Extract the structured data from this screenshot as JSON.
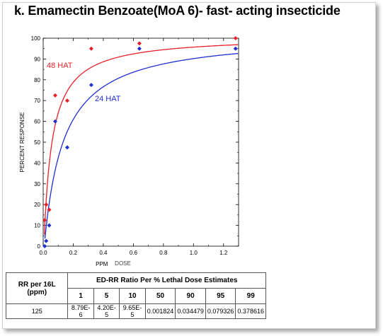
{
  "title": "k. Emamectin Benzoate(MoA 6)- fast- acting insecticide",
  "chart_data": {
    "type": "scatter",
    "xlabel": "PPM",
    "xlabel_overlap": "DOSE",
    "ylabel": "PERCENT  RESPONSE",
    "xlim": [
      0,
      1.3
    ],
    "ylim": [
      0,
      100
    ],
    "x_ticks": [
      "0.0",
      "0.2",
      "0.4",
      "0.6",
      "0.8",
      "1.0",
      "1.2"
    ],
    "y_ticks": [
      "0",
      "10",
      "20",
      "30",
      "40",
      "50",
      "60",
      "70",
      "80",
      "90",
      "100"
    ],
    "series": [
      {
        "name": "48 HAT",
        "color": "#e8202a",
        "points": [
          {
            "x": 0.01,
            "y": 12.5
          },
          {
            "x": 0.02,
            "y": 20
          },
          {
            "x": 0.04,
            "y": 17.5
          },
          {
            "x": 0.08,
            "y": 72.5
          },
          {
            "x": 0.16,
            "y": 70
          },
          {
            "x": 0.32,
            "y": 95
          },
          {
            "x": 0.64,
            "y": 97.5
          },
          {
            "x": 1.28,
            "y": 100
          }
        ]
      },
      {
        "name": "24 HAT",
        "color": "#1f2fd0",
        "points": [
          {
            "x": 0.01,
            "y": 0
          },
          {
            "x": 0.02,
            "y": 2.5
          },
          {
            "x": 0.04,
            "y": 10
          },
          {
            "x": 0.08,
            "y": 60
          },
          {
            "x": 0.16,
            "y": 47.5
          },
          {
            "x": 0.32,
            "y": 77.5
          },
          {
            "x": 0.64,
            "y": 95
          },
          {
            "x": 1.28,
            "y": 95
          }
        ]
      }
    ]
  },
  "table": {
    "rr_header": "RR per 16L (ppm)",
    "ed_header": "ED-RR  Ratio Per % Lethal Dose Estimates",
    "percents": [
      "1",
      "5",
      "10",
      "50",
      "90",
      "95",
      "99"
    ],
    "rr_value": "125",
    "values": [
      "8.79E-6",
      "4.20E-5",
      "9.65E-5",
      "0.001824",
      "0.034479",
      "0.079326",
      "0.378616"
    ]
  }
}
